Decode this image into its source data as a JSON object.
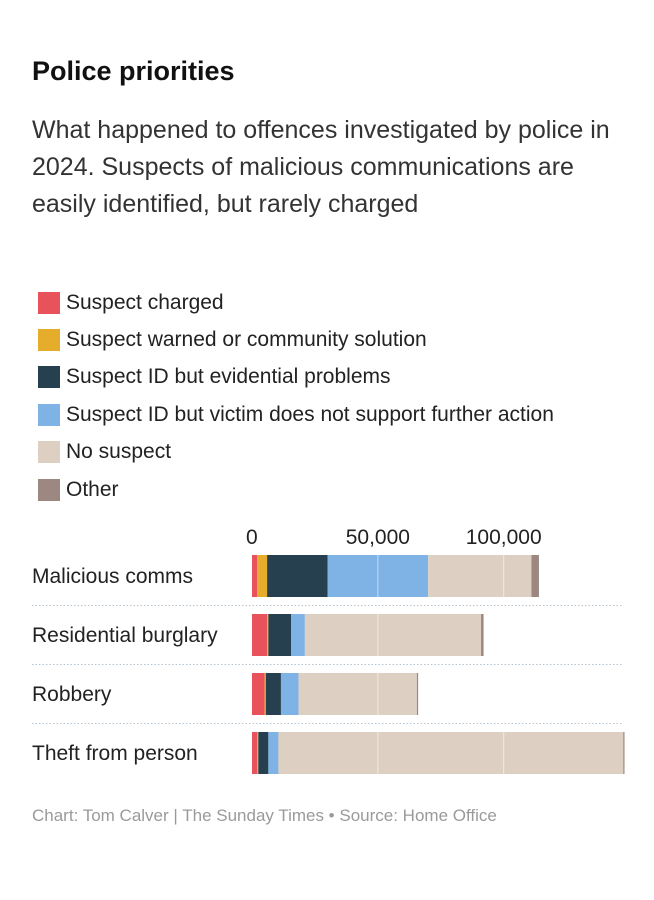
{
  "chart_data": {
    "type": "bar",
    "orientation": "horizontal",
    "stacked": true,
    "title": "Police priorities",
    "subtitle": "What happened to offences investigated by police in 2024. Suspects of malicious communications are easily identified, but rarely charged",
    "categories": [
      "Malicious comms",
      "Residential burglary",
      "Robbery",
      "Theft from person"
    ],
    "series": [
      {
        "name": "Suspect charged",
        "color": "#e8525a",
        "values": [
          2000,
          6000,
          5000,
          2000
        ]
      },
      {
        "name": "Suspect warned or community solution",
        "color": "#e6ad2d",
        "values": [
          4000,
          500,
          500,
          500
        ]
      },
      {
        "name": "Suspect ID but evidential problems",
        "color": "#26404f",
        "values": [
          24000,
          9000,
          6000,
          4000
        ]
      },
      {
        "name": "Suspect ID but victim does not support further action",
        "color": "#7fb2e5",
        "values": [
          40000,
          5500,
          7000,
          4000
        ]
      },
      {
        "name": "No suspect",
        "color": "#ddd0c3",
        "values": [
          41000,
          70000,
          47000,
          137000
        ]
      },
      {
        "name": "Other",
        "color": "#9c8880",
        "values": [
          3000,
          1000,
          500,
          500
        ]
      }
    ],
    "xticks": [
      0,
      50000,
      100000
    ],
    "xtick_labels": [
      "0",
      "50,000",
      "100,000"
    ],
    "xlim": [
      0,
      147000
    ],
    "grid": true,
    "legend_position": "top"
  },
  "footer": "Chart: Tom Calver | The Sunday Times • Source: Home Office"
}
